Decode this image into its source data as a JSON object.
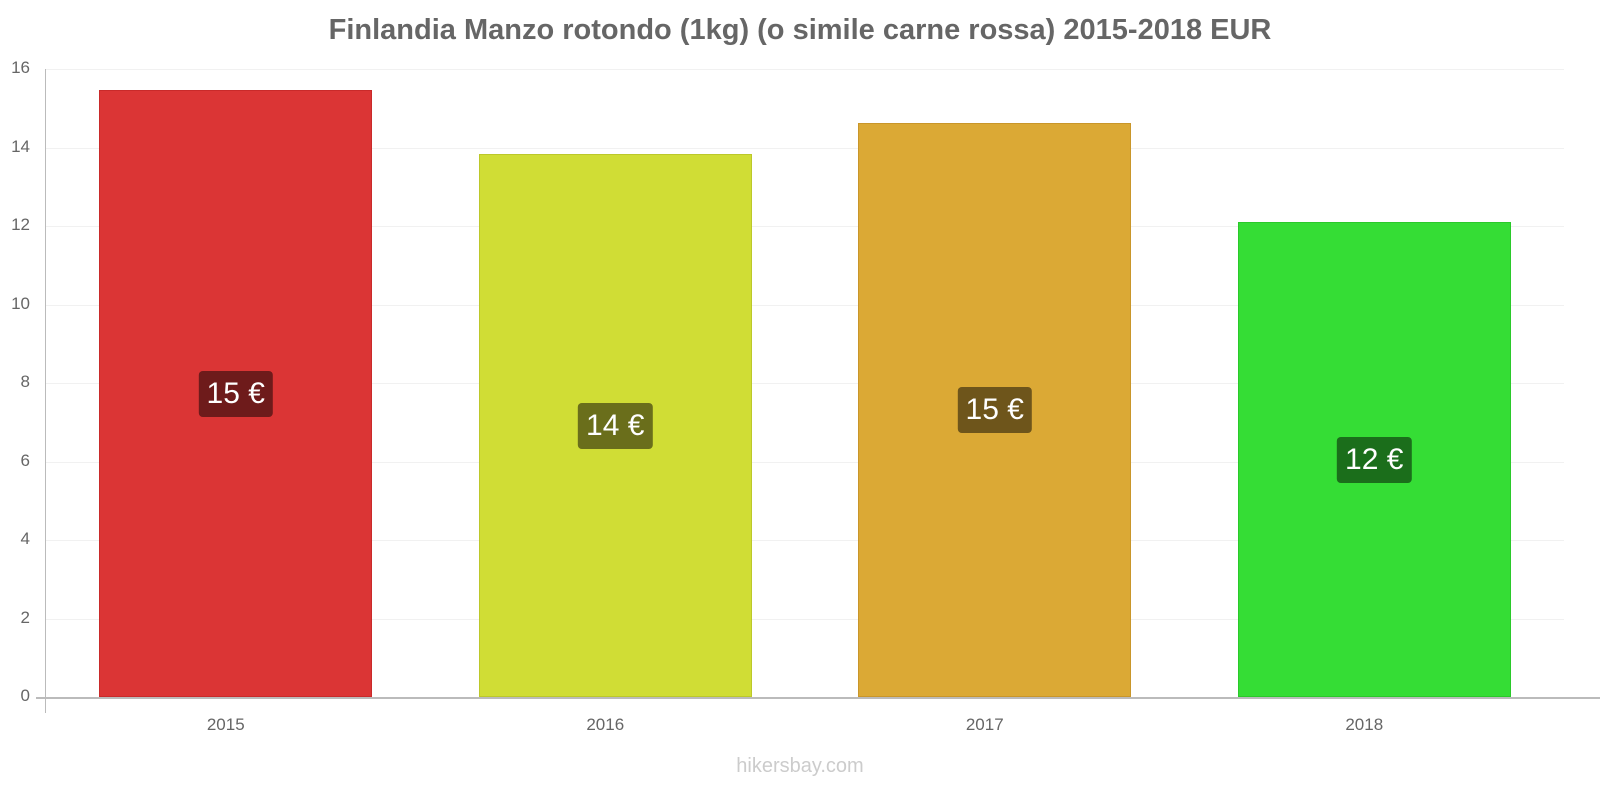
{
  "chart_data": {
    "type": "bar",
    "title": "Finlandia Manzo rotondo (1kg) (o simile carne rossa) 2015-2018 EUR",
    "xlabel": "",
    "ylabel": "",
    "categories": [
      "2015",
      "2016",
      "2017",
      "2018"
    ],
    "values": [
      15.46,
      13.83,
      14.62,
      12.1
    ],
    "data_labels": [
      "15 €",
      "14 €",
      "15 €",
      "12 €"
    ],
    "bar_colors": [
      "#db3535",
      "#d0dd35",
      "#dba935",
      "#35dd35"
    ],
    "bar_border_colors": [
      "#c92a2a",
      "#bcc82a",
      "#c9962a",
      "#2ac92a"
    ],
    "label_bg_colors": [
      "#6e1b1b",
      "#6a6e1b",
      "#6e551b",
      "#1b6e1b"
    ],
    "ylim": [
      0,
      16
    ],
    "yticks": [
      0,
      2,
      4,
      6,
      8,
      10,
      12,
      14,
      16
    ],
    "grid": true,
    "legend": null
  },
  "watermark": "hikersbay.com"
}
